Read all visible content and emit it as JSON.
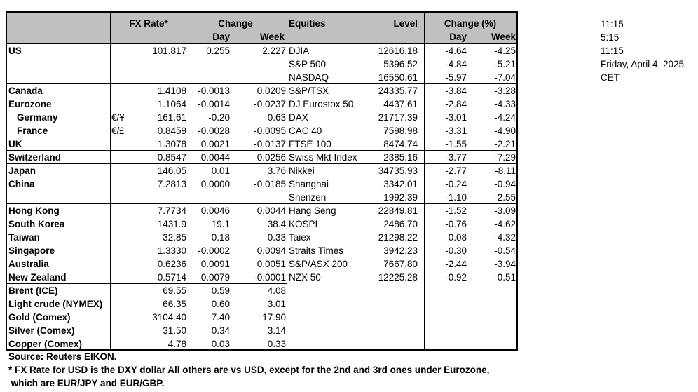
{
  "headers": {
    "fx_rate": "FX Rate*",
    "change": "Change",
    "day": "Day",
    "week": "Week",
    "equities": "Equities",
    "level": "Level",
    "change_pct": "Change (%)",
    "eq_day": "Day",
    "eq_week": "Week"
  },
  "rows": [
    {
      "name": "US",
      "bold": true,
      "cur": "",
      "fx": "101.817",
      "day": "0.255",
      "week": "2.227",
      "eq": "DJIA",
      "level": "12616.18",
      "eday": "-4.64",
      "eweek": "-4.25"
    },
    {
      "name": "",
      "bold": false,
      "cur": "",
      "fx": "",
      "day": "",
      "week": "",
      "eq": "S&P 500",
      "level": "5396.52",
      "eday": "-4.84",
      "eweek": "-5.21"
    },
    {
      "name": "",
      "bold": false,
      "cur": "",
      "fx": "",
      "day": "",
      "week": "",
      "eq": "NASDAQ",
      "level": "16550.61",
      "eday": "-5.97",
      "eweek": "-7.04"
    },
    {
      "name": "Canada",
      "bold": true,
      "cur": "",
      "fx": "1.4108",
      "day": "-0.0013",
      "week": "0.0209",
      "eq": "S&P/TSX",
      "level": "24335.77",
      "eday": "-3.84",
      "eweek": "-3.28"
    },
    {
      "name": "Eurozone",
      "bold": true,
      "cur": "",
      "fx": "1.1064",
      "day": "-0.0014",
      "week": "-0.0237",
      "eq": "DJ Eurostox 50",
      "level": "4437.61",
      "eday": "-2.84",
      "eweek": "-4.33"
    },
    {
      "name": "Germany",
      "bold": true,
      "indent": true,
      "cur": "€/¥",
      "fx": "161.61",
      "day": "-0.20",
      "week": "0.63",
      "eq": "DAX",
      "level": "21717.39",
      "eday": "-3.01",
      "eweek": "-4.24"
    },
    {
      "name": "France",
      "bold": true,
      "indent": true,
      "cur": "€/£",
      "fx": "0.8459",
      "day": "-0.0028",
      "week": "-0.0095",
      "eq": "CAC 40",
      "level": "7598.98",
      "eday": "-3.31",
      "eweek": "-4.90"
    },
    {
      "name": "UK",
      "bold": true,
      "cur": "",
      "fx": "1.3078",
      "day": "0.0021",
      "week": "-0.0137",
      "eq": "FTSE 100",
      "level": "8474.74",
      "eday": "-1.55",
      "eweek": "-2.21"
    },
    {
      "name": "Switzerland",
      "bold": true,
      "cur": "",
      "fx": "0.8547",
      "day": "0.0044",
      "week": "0.0256",
      "eq": "Swiss Mkt Index",
      "level": "2385.16",
      "eday": "-3.77",
      "eweek": "-7.29"
    },
    {
      "name": "Japan",
      "bold": true,
      "cur": "",
      "fx": "146.05",
      "day": "0.01",
      "week": "3.76",
      "eq": "Nikkei",
      "level": "34735.93",
      "eday": "-2.77",
      "eweek": "-8.11"
    },
    {
      "name": "China",
      "bold": true,
      "cur": "",
      "fx": "7.2813",
      "day": "0.0000",
      "week": "-0.0185",
      "eq": "Shanghai",
      "level": "3342.01",
      "eday": "-0.24",
      "eweek": "-0.94"
    },
    {
      "name": "",
      "bold": false,
      "cur": "",
      "fx": "",
      "day": "",
      "week": "",
      "eq": "Shenzen",
      "level": "1992.39",
      "eday": "-1.10",
      "eweek": "-2.55"
    },
    {
      "name": "Hong Kong",
      "bold": true,
      "cur": "",
      "fx": "7.7734",
      "day": "0.0046",
      "week": "0.0044",
      "eq": "Hang Seng",
      "level": "22849.81",
      "eday": "-1.52",
      "eweek": "-3.09"
    },
    {
      "name": "South Korea",
      "bold": true,
      "cur": "",
      "fx": "1431.9",
      "day": "19.1",
      "week": "38.4",
      "eq": "KOSPI",
      "level": "2486.70",
      "eday": "-0.76",
      "eweek": "-4.62"
    },
    {
      "name": "Taiwan",
      "bold": true,
      "cur": "",
      "fx": "32.85",
      "day": "0.18",
      "week": "0.33",
      "eq": "Taiex",
      "level": "21298.22",
      "eday": "0.08",
      "eweek": "-4.32"
    },
    {
      "name": "Singapore",
      "bold": true,
      "cur": "",
      "fx": "1.3330",
      "day": "-0.0002",
      "week": "0.0094",
      "eq": "Straits Times",
      "level": "3942.23",
      "eday": "-0.30",
      "eweek": "-0.54"
    },
    {
      "name": "Australia",
      "bold": true,
      "cur": "",
      "fx": "0.6236",
      "day": "0.0091",
      "week": "0.0051",
      "eq": "S&P/ASX  200",
      "level": "7667.80",
      "eday": "-2.44",
      "eweek": "-3.94"
    },
    {
      "name": "New Zealand",
      "bold": true,
      "cur": "",
      "fx": "0.5714",
      "day": "0.0079",
      "week": "-0.0001",
      "eq": "NZX 50",
      "level": "12225.28",
      "eday": "-0.92",
      "eweek": "-0.51"
    },
    {
      "name": "Brent (ICE)",
      "bold": true,
      "cur": "",
      "fx": "69.55",
      "day": "0.59",
      "week": "4.08",
      "eq": "",
      "level": "",
      "eday": "",
      "eweek": ""
    },
    {
      "name": "Light crude (NYMEX)",
      "bold": true,
      "cur": "",
      "fx": "66.35",
      "day": "0.60",
      "week": "3.01",
      "eq": "",
      "level": "",
      "eday": "",
      "eweek": ""
    },
    {
      "name": "Gold (Comex)",
      "bold": true,
      "cur": "",
      "fx": "3104.40",
      "day": "-7.40",
      "week": "-17.90",
      "eq": "",
      "level": "",
      "eday": "",
      "eweek": ""
    },
    {
      "name": "Silver (Comex)",
      "bold": true,
      "cur": "",
      "fx": "31.50",
      "day": "0.34",
      "week": "3.14",
      "eq": "",
      "level": "",
      "eday": "",
      "eweek": ""
    },
    {
      "name": "Copper (Comex)",
      "bold": true,
      "cur": "",
      "fx": "4.78",
      "day": "0.03",
      "week": "0.33",
      "eq": "",
      "level": "",
      "eday": "",
      "eweek": ""
    }
  ],
  "side_times": [
    "11:15",
    "5:15",
    "11:15",
    "Friday, April 4, 2025",
    "CET"
  ],
  "footer": {
    "source": "Source:  Reuters EIKON.",
    "note1": "* FX Rate for USD is the DXY dollar  All others are vs USD, except for the 2nd and 3rd ones under Eurozone,",
    "note2": " which are EUR/JPY and EUR/GBP."
  }
}
